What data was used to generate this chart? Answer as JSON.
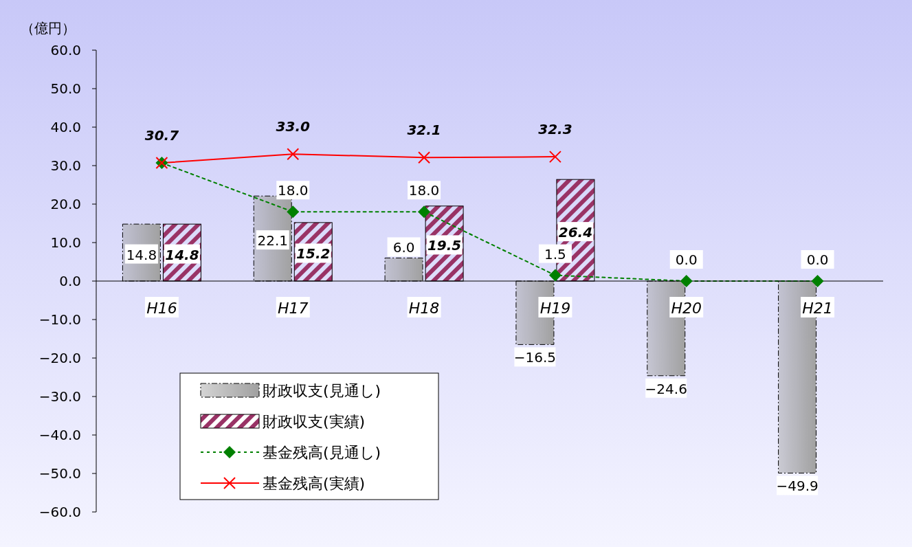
{
  "chart_data": {
    "type": "bar",
    "ylabel": "（億円）",
    "categories": [
      "H16",
      "H17",
      "H18",
      "H19",
      "H20",
      "H21"
    ],
    "ylim": [
      -60,
      60
    ],
    "yticks": [
      {
        "value": -60,
        "label": "−60.0"
      },
      {
        "value": -50,
        "label": "−50.0"
      },
      {
        "value": -40,
        "label": "−40.0"
      },
      {
        "value": -30,
        "label": "−30.0"
      },
      {
        "value": -20,
        "label": "−20.0"
      },
      {
        "value": -10,
        "label": "−10.0"
      },
      {
        "value": 0,
        "label": "0.0"
      },
      {
        "value": 10,
        "label": "10.0"
      },
      {
        "value": 20,
        "label": "20.0"
      },
      {
        "value": 30,
        "label": "30.0"
      },
      {
        "value": 40,
        "label": "40.0"
      },
      {
        "value": 50,
        "label": "50.0"
      },
      {
        "value": 60,
        "label": "60.0"
      }
    ],
    "grid": false,
    "legend": "bottom left",
    "series": [
      {
        "name": "財政収支(見通し)",
        "color": "#a0a0a0",
        "values": [
          14.8,
          22.1,
          6.0,
          -16.5,
          -24.6,
          -49.9
        ],
        "value_labels": [
          "14.8",
          "22.1",
          "6.0",
          "−16.5",
          "−24.6",
          "−49.9"
        ]
      },
      {
        "name": "財政収支(実績)",
        "color": "#993366",
        "values": [
          14.8,
          15.2,
          19.5,
          26.4,
          null,
          null
        ],
        "value_labels": [
          "14.8",
          "15.2",
          "19.5",
          "26.4",
          null,
          null
        ]
      },
      {
        "name": "基金残高(見通し)",
        "type": "line",
        "color": "#008000",
        "marker": "diamond",
        "line_style": "dotted",
        "values": [
          30.7,
          18.0,
          18.0,
          1.5,
          0.0,
          0.0
        ],
        "value_labels": [
          null,
          "18.0",
          "18.0",
          "1.5",
          "0.0",
          "0.0"
        ]
      },
      {
        "name": "基金残高(実績)",
        "type": "line",
        "color": "#ff0000",
        "marker": "cross",
        "line_style": "solid",
        "values": [
          30.7,
          33.0,
          32.1,
          32.3,
          null,
          null
        ],
        "value_labels": [
          "30.7",
          "33.0",
          "32.1",
          "32.3",
          null,
          null
        ]
      }
    ]
  }
}
